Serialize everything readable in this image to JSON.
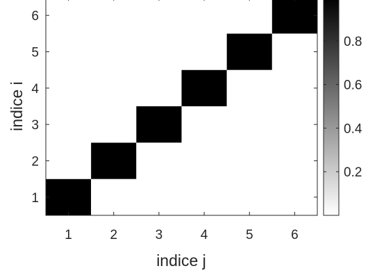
{
  "chart_data": {
    "type": "heatmap",
    "title": "",
    "xlabel": "indice j",
    "ylabel": "indice i",
    "x": [
      1,
      2,
      3,
      4,
      5,
      6
    ],
    "y": [
      1,
      2,
      3,
      4,
      5,
      6
    ],
    "xlim": [
      0.5,
      6.5
    ],
    "ylim": [
      0.5,
      6.5
    ],
    "x_ticks": [
      "1",
      "2",
      "3",
      "4",
      "5",
      "6"
    ],
    "y_ticks": [
      "1",
      "2",
      "3",
      "4",
      "5",
      "6"
    ],
    "z": [
      [
        1,
        0,
        0,
        0,
        0,
        0
      ],
      [
        0,
        1,
        0,
        0,
        0,
        0
      ],
      [
        0,
        0,
        1,
        0,
        0,
        0
      ],
      [
        0,
        0,
        0,
        1,
        0,
        0
      ],
      [
        0,
        0,
        0,
        0,
        1,
        0
      ],
      [
        0,
        0,
        0,
        0,
        0,
        1
      ]
    ],
    "colormap": "gray-reversed",
    "colorbar": {
      "range": [
        0,
        1
      ],
      "ticks": [
        0.2,
        0.4,
        0.6,
        0.8
      ],
      "tick_labels": [
        "0.2",
        "0.4",
        "0.6",
        "0.8"
      ]
    },
    "grid": false,
    "colors": {
      "high": "#000000",
      "low": "#ffffff",
      "axis": "#262626"
    }
  }
}
